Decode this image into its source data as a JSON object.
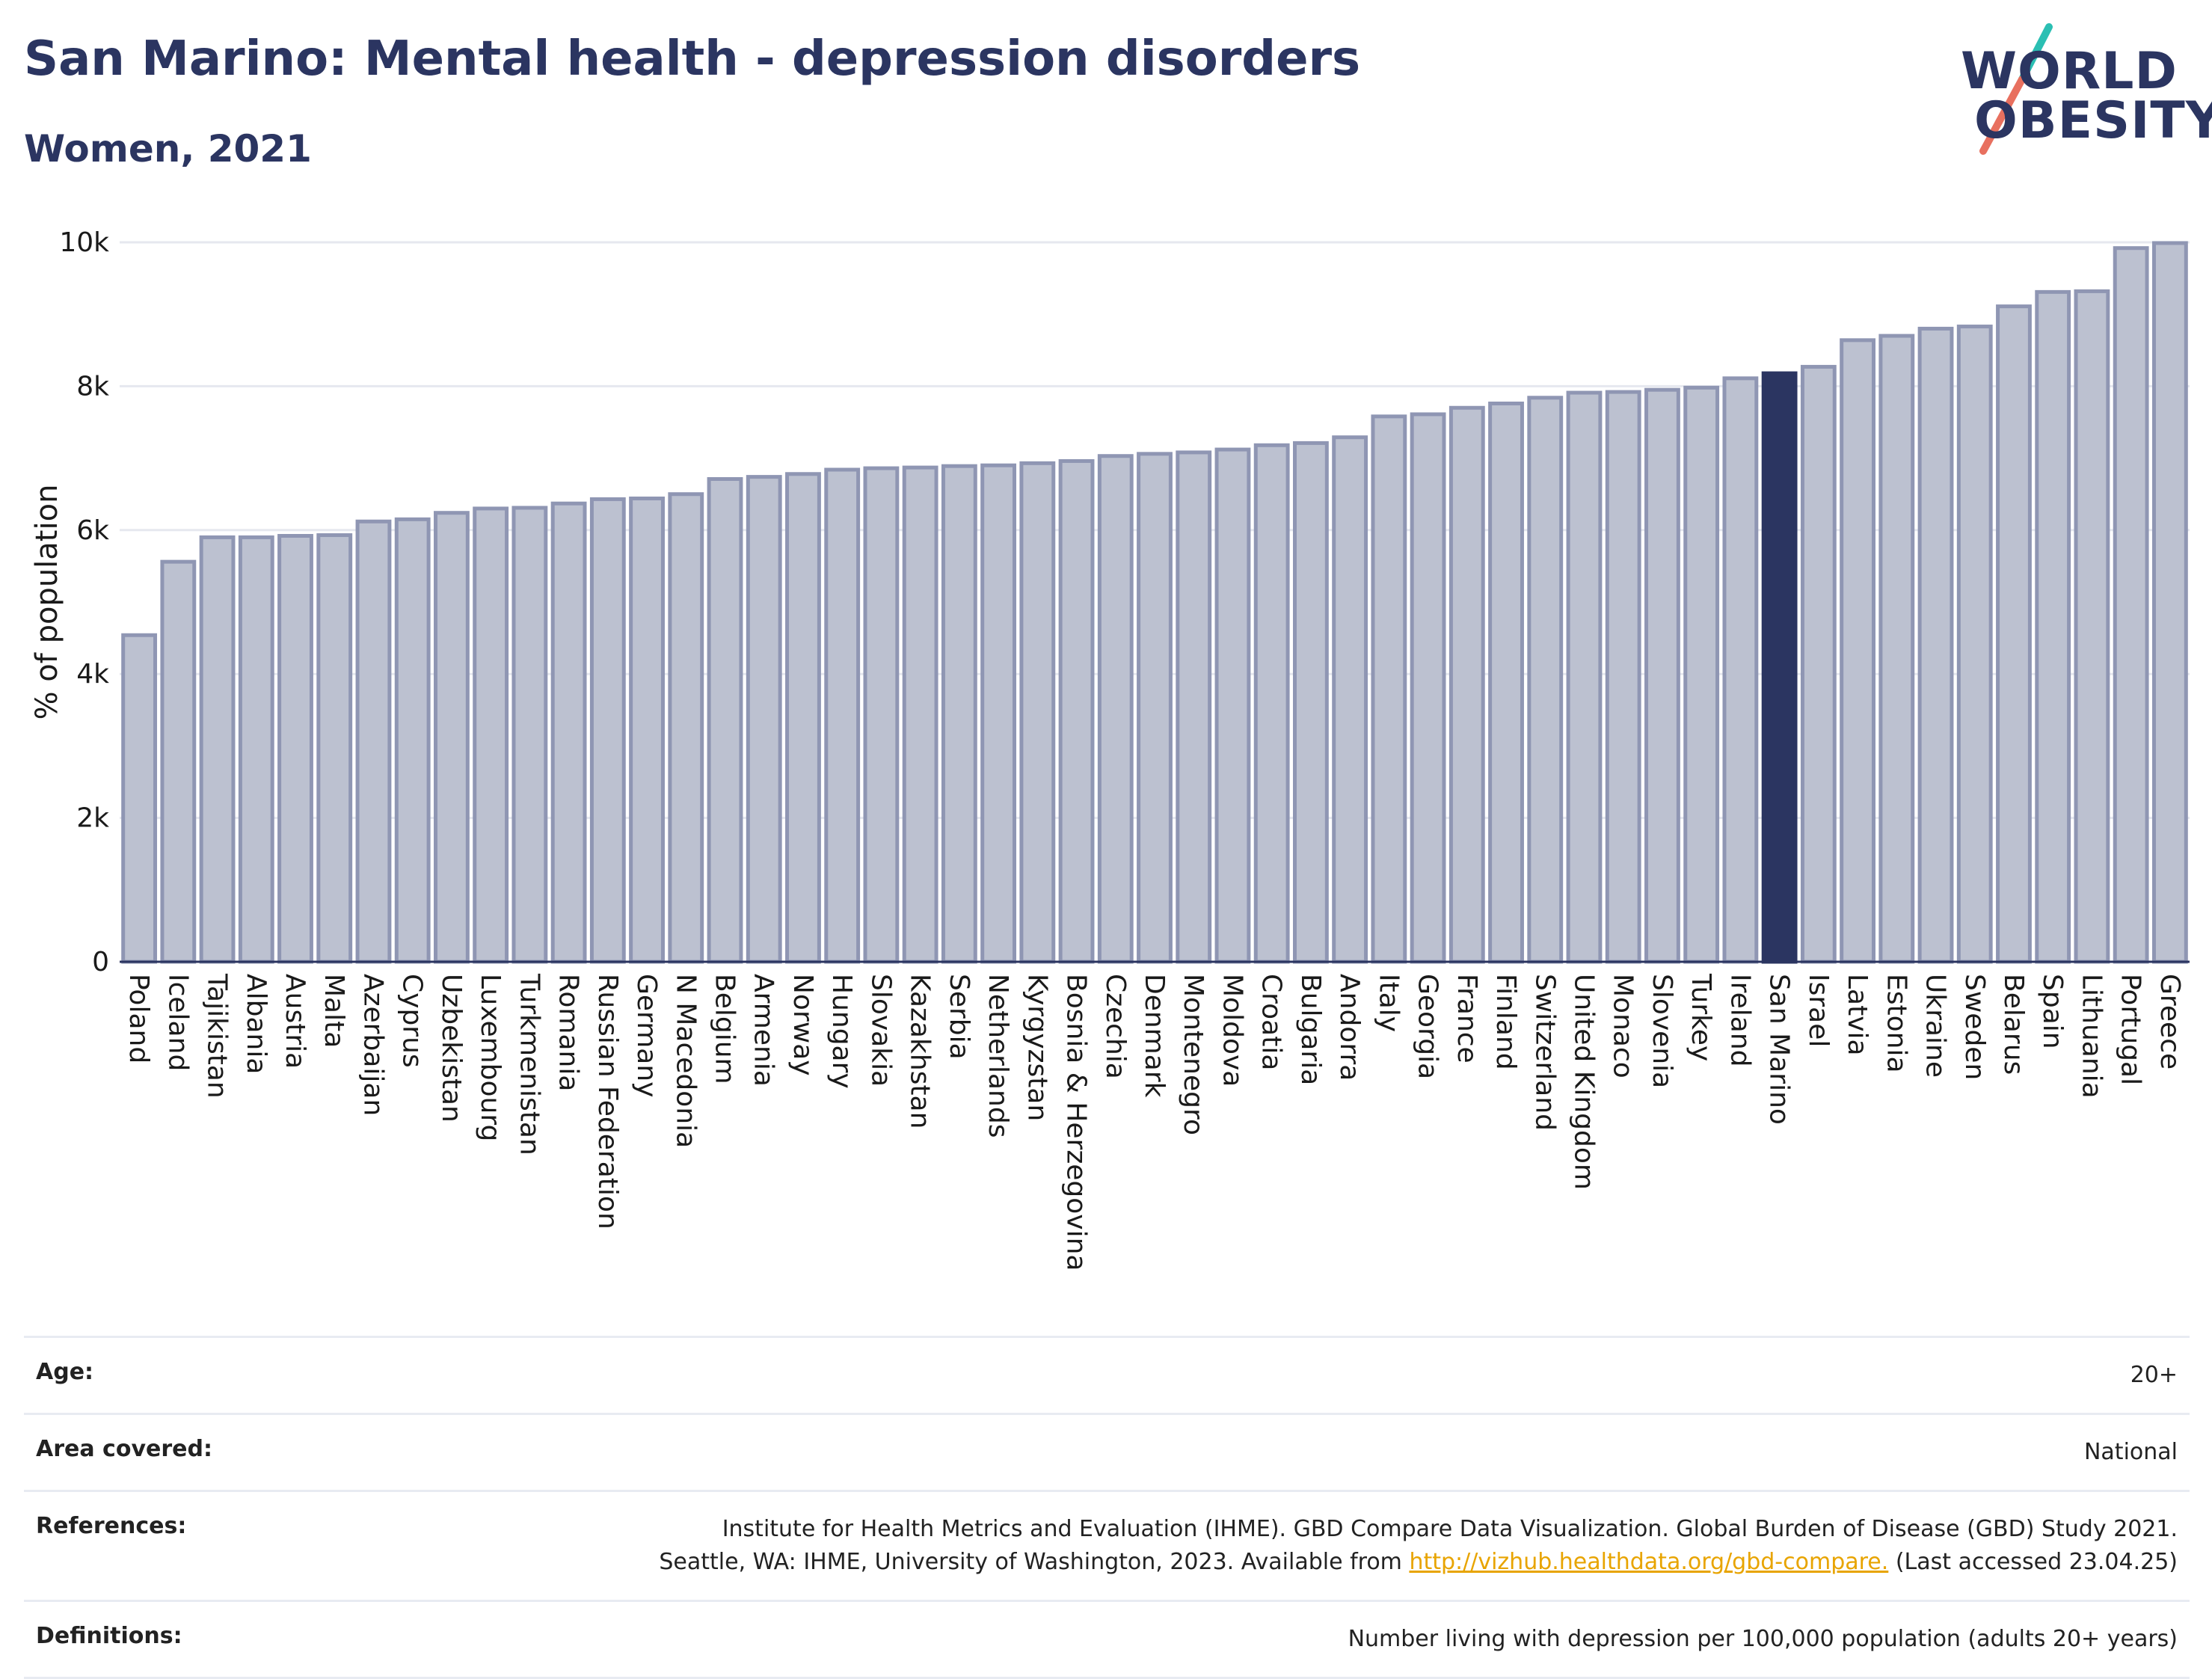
{
  "header": {
    "title": "San Marino: Mental health - depression disorders",
    "subtitle": "Women, 2021"
  },
  "logo": {
    "line1": "WORLD",
    "line2": "OBESITY",
    "accent_top": "#2bbfb3",
    "accent_bottom": "#e8705f"
  },
  "colors": {
    "bar_fill": "#bcc1d0",
    "bar_stroke": "#8f96b3",
    "highlight_fill": "#2b3561",
    "grid": "#e6e8ef",
    "axis_text": "#1a1a1a"
  },
  "chart_data": {
    "type": "bar",
    "ylabel": "% of population",
    "ylim": [
      0,
      10000
    ],
    "yticks": [
      0,
      2000,
      4000,
      6000,
      8000,
      10000
    ],
    "ytick_labels": [
      "0",
      "2k",
      "4k",
      "6k",
      "8k",
      "10k"
    ],
    "grid": true,
    "highlight": "San Marino",
    "categories": [
      "Poland",
      "Iceland",
      "Tajikistan",
      "Albania",
      "Austria",
      "Malta",
      "Azerbaijan",
      "Cyprus",
      "Uzbekistan",
      "Luxembourg",
      "Turkmenistan",
      "Romania",
      "Russian Federation",
      "Germany",
      "N Macedonia",
      "Belgium",
      "Armenia",
      "Norway",
      "Hungary",
      "Slovakia",
      "Kazakhstan",
      "Serbia",
      "Netherlands",
      "Kyrgyzstan",
      "Bosnia & Herzegovina",
      "Czechia",
      "Denmark",
      "Montenegro",
      "Moldova",
      "Croatia",
      "Bulgaria",
      "Andorra",
      "Italy",
      "Georgia",
      "France",
      "Finland",
      "Switzerland",
      "United Kingdom",
      "Monaco",
      "Slovenia",
      "Turkey",
      "Ireland",
      "San Marino",
      "Israel",
      "Latvia",
      "Estonia",
      "Ukraine",
      "Sweden",
      "Belarus",
      "Spain",
      "Lithuania",
      "Portugal",
      "Greece"
    ],
    "values": [
      4540,
      5560,
      5900,
      5900,
      5920,
      5930,
      6120,
      6150,
      6240,
      6300,
      6310,
      6370,
      6430,
      6440,
      6500,
      6710,
      6740,
      6780,
      6840,
      6860,
      6870,
      6890,
      6900,
      6930,
      6960,
      7030,
      7060,
      7080,
      7120,
      7180,
      7210,
      7290,
      7580,
      7610,
      7700,
      7760,
      7840,
      7910,
      7920,
      7950,
      7980,
      8110,
      8180,
      8270,
      8640,
      8700,
      8800,
      8830,
      9110,
      9310,
      9320,
      9920,
      9990
    ]
  },
  "meta": [
    {
      "key": "Age:",
      "value": "20+"
    },
    {
      "key": "Area covered:",
      "value": "National"
    },
    {
      "key": "References:",
      "value_line1": "Institute for Health Metrics and Evaluation (IHME). GBD Compare Data Visualization. Global Burden of Disease (GBD) Study 2021.",
      "value_line2_pre": "Seattle, WA: IHME, University of Washington, 2023. Available from ",
      "link": "http://vizhub.healthdata.org/gbd-compare.",
      "value_line2_post": " (Last accessed 23.04.25)"
    },
    {
      "key": "Definitions:",
      "value": "Number living with depression per 100,000 population (adults 20+ years)"
    }
  ]
}
